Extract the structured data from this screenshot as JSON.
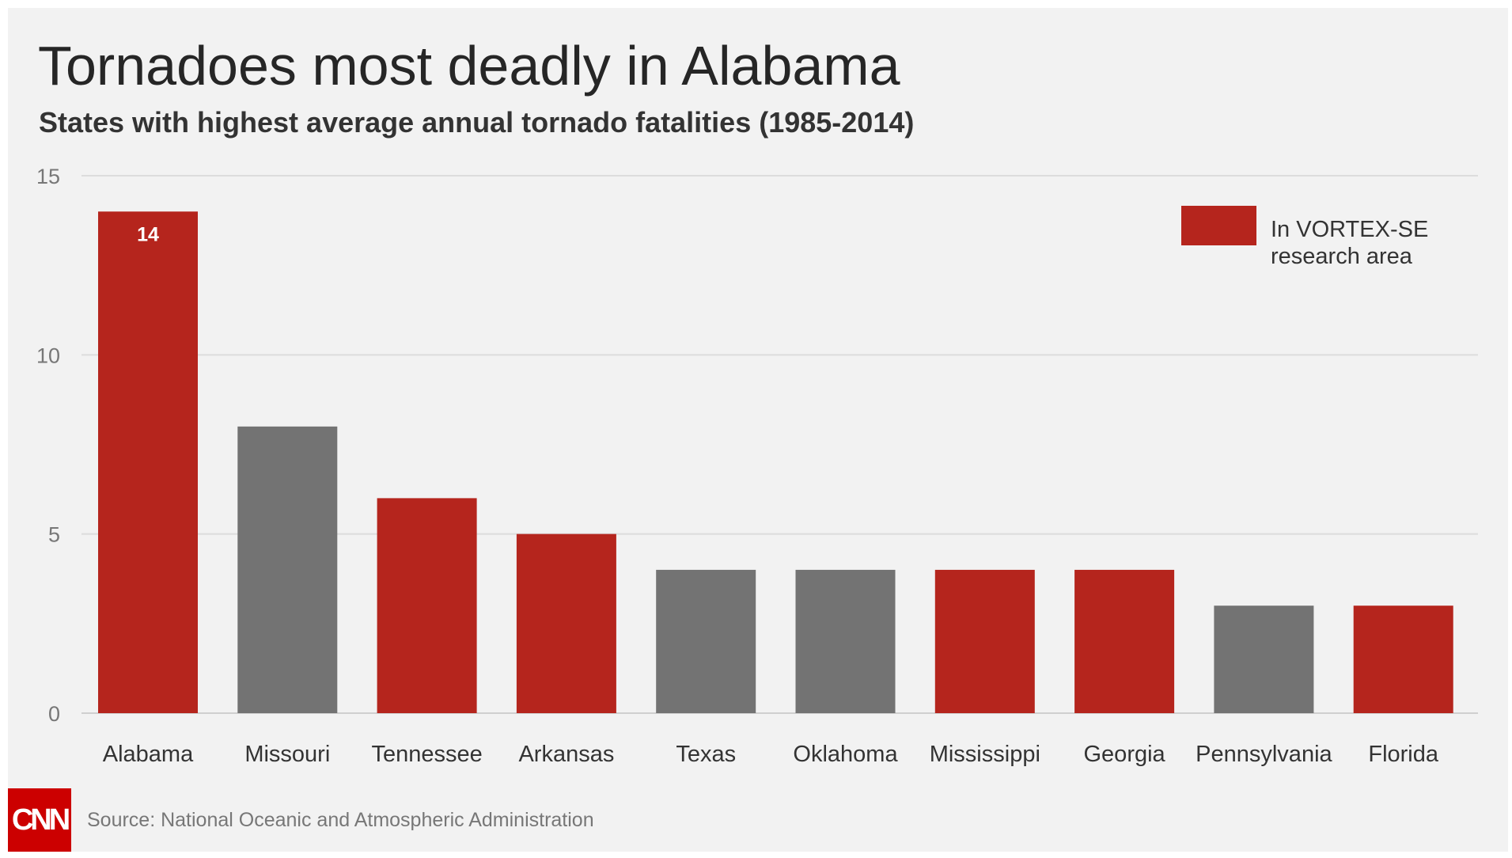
{
  "chart_data": {
    "type": "bar",
    "title": "Tornadoes most deadly in Alabama",
    "subtitle": "States with highest average annual tornado fatalities (1985-2014)",
    "categories": [
      "Alabama",
      "Missouri",
      "Tennessee",
      "Arkansas",
      "Texas",
      "Oklahoma",
      "Mississippi",
      "Georgia",
      "Pennsylvania",
      "Florida"
    ],
    "values": [
      14,
      8,
      6,
      5,
      4,
      4,
      4,
      4,
      3,
      3
    ],
    "in_vortex_se": [
      true,
      false,
      true,
      true,
      false,
      false,
      true,
      true,
      false,
      true
    ],
    "data_labels": [
      "14",
      "",
      "",
      "",
      "",
      "",
      "",
      "",
      "",
      ""
    ],
    "xlabel": "",
    "ylabel": "",
    "ylim": [
      0,
      15
    ],
    "yticks": [
      0,
      5,
      10,
      15
    ],
    "grid": true,
    "legend": {
      "placement": "top-right",
      "entries": [
        {
          "label": "In VORTEX-SE research area",
          "color": "#b5251d"
        }
      ]
    },
    "colors": {
      "vortex": "#b5251d",
      "other": "#737373"
    }
  },
  "footer": {
    "logo_text": "CNN",
    "source": "Source: National Oceanic and Atmospheric Administration"
  }
}
